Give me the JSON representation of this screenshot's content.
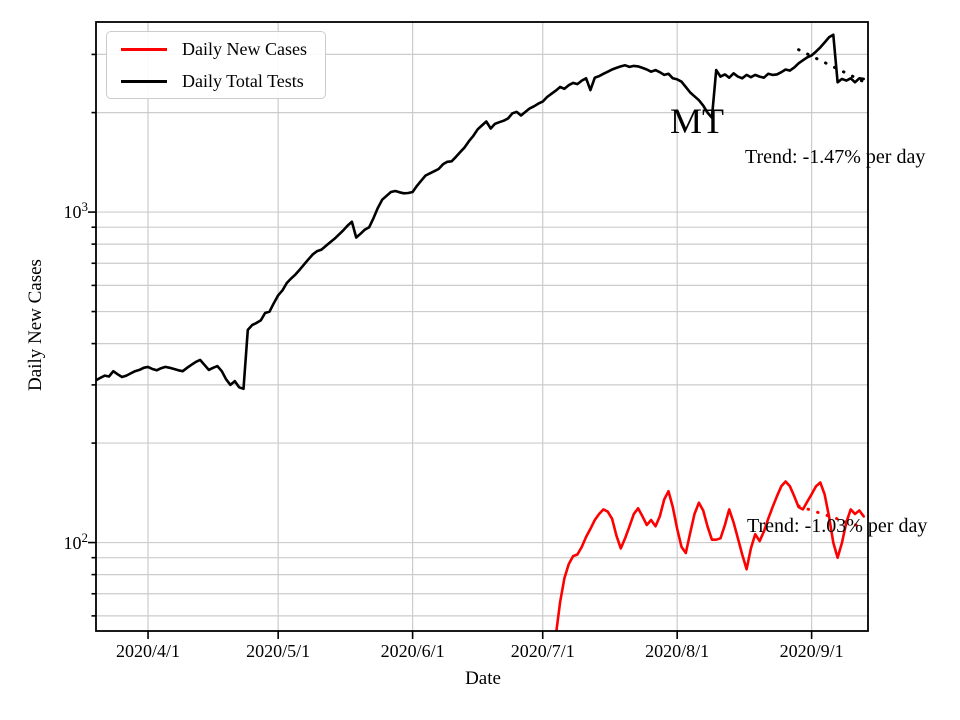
{
  "chart_data": {
    "type": "line",
    "title": "",
    "xlabel": "Date",
    "ylabel": "Daily New Cases",
    "yscale": "log",
    "grid": true,
    "xlim": [
      "2020-03-20",
      "2020-09-14"
    ],
    "ylim": [
      54,
      3760
    ],
    "x_ticks": [
      {
        "date": "2020-04-01",
        "label": "2020/4/1"
      },
      {
        "date": "2020-05-01",
        "label": "2020/5/1"
      },
      {
        "date": "2020-06-01",
        "label": "2020/6/1"
      },
      {
        "date": "2020-07-01",
        "label": "2020/7/1"
      },
      {
        "date": "2020-08-01",
        "label": "2020/8/1"
      },
      {
        "date": "2020-09-01",
        "label": "2020/9/1"
      }
    ],
    "y_ticks": [
      {
        "value": 100,
        "base": "10",
        "exponent": "2"
      },
      {
        "value": 1000,
        "base": "10",
        "exponent": "3"
      }
    ],
    "annotation": {
      "state_label": "MT"
    },
    "legend": {
      "position": "upper left",
      "entries": [
        {
          "label": "Daily New Cases",
          "color": "#ff0000"
        },
        {
          "label": "Daily Total Tests",
          "color": "#000000"
        }
      ]
    },
    "series": [
      {
        "name": "Daily Total Tests",
        "color": "#000000",
        "start_date": "2020-03-20",
        "values": [
          310,
          315,
          320,
          318,
          330,
          323,
          317,
          320,
          325,
          330,
          333,
          338,
          340,
          335,
          332,
          337,
          340,
          338,
          335,
          332,
          330,
          338,
          345,
          352,
          357,
          345,
          333,
          338,
          342,
          330,
          312,
          300,
          308,
          295,
          292,
          440,
          455,
          462,
          470,
          495,
          500,
          530,
          560,
          580,
          610,
          630,
          648,
          670,
          695,
          720,
          745,
          762,
          770,
          790,
          810,
          830,
          855,
          880,
          910,
          935,
          838,
          860,
          885,
          900,
          960,
          1030,
          1090,
          1120,
          1150,
          1158,
          1148,
          1140,
          1142,
          1150,
          1200,
          1245,
          1290,
          1310,
          1330,
          1350,
          1395,
          1420,
          1425,
          1470,
          1520,
          1570,
          1640,
          1700,
          1780,
          1830,
          1880,
          1790,
          1850,
          1870,
          1890,
          1920,
          1990,
          2010,
          1960,
          2010,
          2060,
          2090,
          2130,
          2160,
          2230,
          2280,
          2330,
          2390,
          2360,
          2420,
          2460,
          2440,
          2500,
          2540,
          2340,
          2550,
          2580,
          2620,
          2660,
          2700,
          2730,
          2760,
          2780,
          2750,
          2770,
          2760,
          2730,
          2700,
          2660,
          2690,
          2650,
          2600,
          2620,
          2540,
          2520,
          2480,
          2390,
          2300,
          2240,
          2180,
          2100,
          2000,
          1930,
          2690,
          2570,
          2610,
          2550,
          2630,
          2570,
          2540,
          2600,
          2560,
          2600,
          2570,
          2550,
          2620,
          2600,
          2610,
          2650,
          2700,
          2680,
          2740,
          2820,
          2880,
          2940,
          2980,
          3060,
          3150,
          3260,
          3380,
          3440,
          2470,
          2530,
          2500,
          2540,
          2470,
          2540,
          2530
        ]
      },
      {
        "name": "Daily New Cases",
        "color": "#ff0000",
        "start_date": "2020-07-03",
        "values": [
          40,
          52,
          66,
          78,
          86,
          91,
          92,
          97,
          104,
          110,
          117,
          122,
          126,
          124,
          118,
          105,
          96,
          103,
          112,
          122,
          127,
          120,
          113,
          117,
          112,
          120,
          135,
          143,
          128,
          110,
          97,
          93,
          107,
          122,
          132,
          125,
          112,
          102,
          102,
          103,
          113,
          126,
          115,
          103,
          92,
          83,
          96,
          106,
          101,
          108,
          118,
          128,
          138,
          148,
          153,
          148,
          138,
          128,
          126,
          133,
          140,
          148,
          152,
          140,
          120,
          100,
          90,
          100,
          115,
          126,
          122,
          125,
          120
        ]
      }
    ],
    "trend_lines": [
      {
        "for_series": "Daily Total Tests",
        "color": "#000000",
        "label": "Trend: -1.47% per day",
        "rate_pct_per_day": -1.47,
        "start_date": "2020-08-29",
        "start_value": 3100,
        "end_date": "2020-09-13",
        "end_value": 2480
      },
      {
        "for_series": "Daily New Cases",
        "color": "#ff0000",
        "label": "Trend: -1.03% per day",
        "rate_pct_per_day": -1.03,
        "start_date": "2020-08-29",
        "start_value": 129,
        "end_date": "2020-09-13",
        "end_value": 111
      }
    ]
  }
}
